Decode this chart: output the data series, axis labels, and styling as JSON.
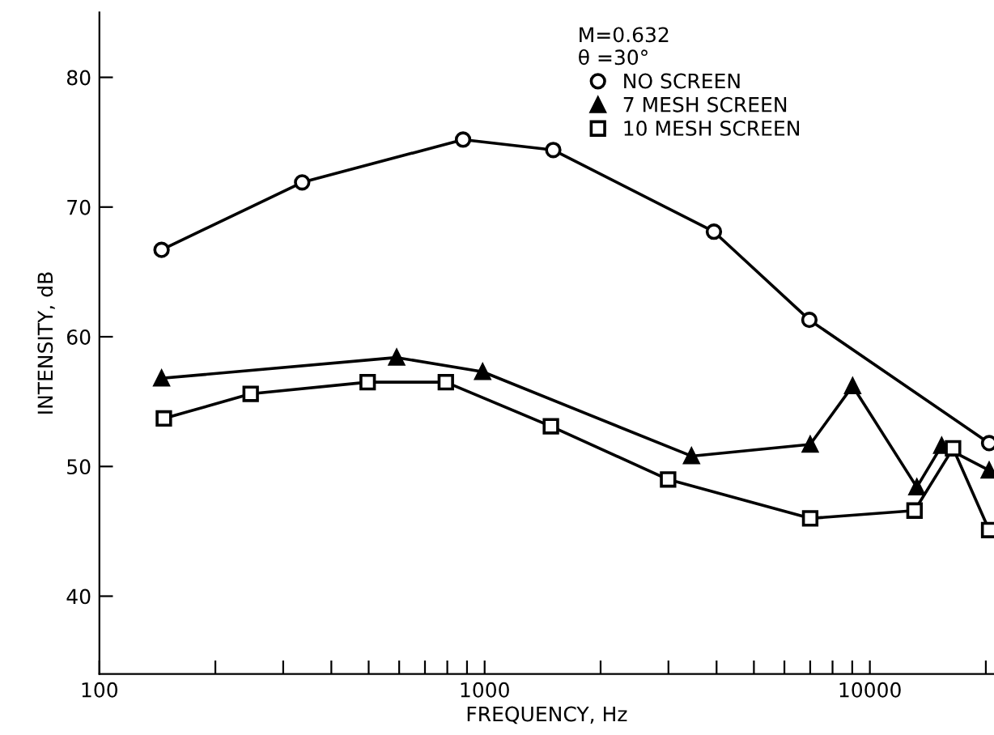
{
  "chart_data": {
    "type": "line",
    "xlabel": "FREQUENCY, Hz",
    "ylabel": "INTENSITY, dB",
    "legend_title": "M=0.632\nθ =30°",
    "log": "x",
    "xlim": [
      100,
      21000
    ],
    "ylim": [
      34,
      85
    ],
    "xticks": [
      100,
      {
        "value": 200,
        "label": null
      },
      {
        "value": 300,
        "label": null
      },
      {
        "value": 400,
        "label": null
      },
      {
        "value": 500,
        "label": null
      },
      {
        "value": 600,
        "label": null
      },
      {
        "value": 700,
        "label": null
      },
      {
        "value": 800,
        "label": null
      },
      {
        "value": 900,
        "label": null
      },
      1000,
      {
        "value": 2000,
        "label": null
      },
      {
        "value": 3000,
        "label": null
      },
      {
        "value": 4000,
        "label": null
      },
      {
        "value": 5000,
        "label": null
      },
      {
        "value": 6000,
        "label": null
      },
      {
        "value": 7000,
        "label": null
      },
      {
        "value": 8000,
        "label": null
      },
      {
        "value": 9000,
        "label": null
      },
      10000,
      {
        "value": 20000,
        "label": null
      }
    ],
    "yticks": [
      40,
      50,
      60,
      70,
      80
    ],
    "grid": false,
    "legend": "top right",
    "series": [
      {
        "name": "NO SCREEN",
        "color": "#000000",
        "marker": "circle",
        "x": [
          145,
          336,
          879,
          1507,
          3937,
          6966,
          20400
        ],
        "values": [
          66.7,
          71.9,
          75.2,
          74.4,
          68.1,
          61.3,
          51.8
        ]
      },
      {
        "name": "7 MESH SCREEN",
        "color": "#000000",
        "marker": "triangle",
        "x": [
          145,
          591,
          988,
          3443,
          7000,
          9020,
          13240,
          15360,
          20400
        ],
        "values": [
          56.8,
          58.4,
          57.3,
          50.8,
          51.7,
          56.2,
          48.4,
          51.6,
          49.7
        ]
      },
      {
        "name": "10 MESH SCREEN",
        "color": "#000000",
        "marker": "square",
        "x": [
          147,
          247,
          497,
          793,
          1486,
          2994,
          7000,
          13060,
          16440,
          20400
        ],
        "values": [
          53.7,
          55.6,
          56.5,
          56.5,
          53.1,
          49.0,
          46.0,
          46.6,
          51.4,
          45.1
        ]
      }
    ]
  }
}
